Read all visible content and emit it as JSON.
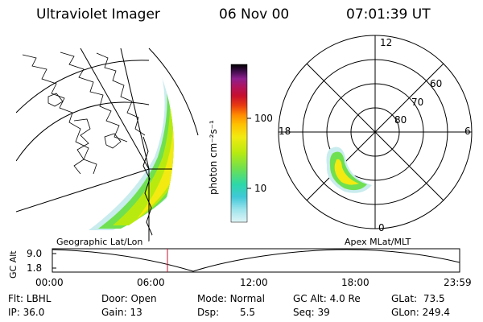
{
  "header": {
    "title": "Ultraviolet Imager",
    "date": "06 Nov 00",
    "time": "07:01:39 UT"
  },
  "colorbar": {
    "unit_label": "photon cm⁻²s⁻¹",
    "ticks": [
      "100",
      "10"
    ],
    "colors": [
      "#000000",
      "#3a0b45",
      "#64137a",
      "#8d1f8e",
      "#b0135f",
      "#c8102e",
      "#e83b10",
      "#ff8a00",
      "#ffc000",
      "#f2ea10",
      "#b8ea10",
      "#6fe050",
      "#2dd8a8",
      "#40c8d8",
      "#9ee4ec",
      "#dff4f6"
    ]
  },
  "left_map": {
    "caption": "Geographic Lat/Lon"
  },
  "polar_plot": {
    "caption": "Apex MLat/MLT",
    "mlt_labels": {
      "top": "12",
      "left": "18",
      "right": "6",
      "bottom": "0"
    },
    "lat_labels": [
      "60",
      "70",
      "80"
    ]
  },
  "altitude_plot": {
    "ylabel": "GC Alt",
    "yticks": [
      "9.0",
      "1.8"
    ],
    "xticks": [
      "00:00",
      "06:00",
      "12:00",
      "18:00",
      "23:59"
    ],
    "current_time_marker": "07:01:39"
  },
  "info": {
    "flt_label": "Flt:",
    "flt_value": "LBHL",
    "ip_label": "IP:",
    "ip_value": "36.0",
    "door_label": "Door:",
    "door_value": "Open",
    "gain_label": "Gain:",
    "gain_value": "13",
    "mode_label": "Mode:",
    "mode_value": "Normal",
    "dsp_label": "Dsp:",
    "dsp_value": "5.5",
    "gcalt_label": "GC Alt:",
    "gcalt_value": "4.0 Re",
    "seq_label": "Seq:",
    "seq_value": "39",
    "glat_label": "GLat:",
    "glat_value": "73.5",
    "glon_label": "GLon:",
    "glon_value": "249.4"
  }
}
